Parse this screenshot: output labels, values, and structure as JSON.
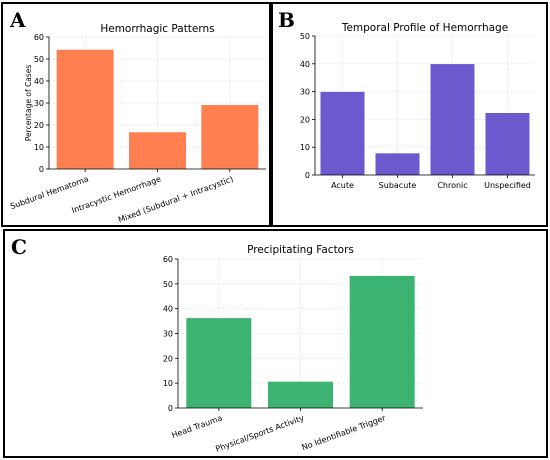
{
  "panels": [
    {
      "letter": "A"
    },
    {
      "letter": "B"
    },
    {
      "letter": "C"
    }
  ],
  "chart_data": [
    {
      "type": "bar",
      "title": "Hemorrhagic Patterns",
      "xlabel": "",
      "ylabel": "Percentage of Cases",
      "categories": [
        "Subdural Hematoma",
        "Intracystic Hemorrhage",
        "Mixed (Subdural + Intracystic)"
      ],
      "values": [
        54.2,
        16.7,
        29.1
      ],
      "ylim": [
        0,
        60
      ],
      "yticks": [
        0,
        10,
        20,
        30,
        40,
        50,
        60
      ],
      "color": "#FF7F50",
      "grid": true,
      "xtick_rotation": -20
    },
    {
      "type": "bar",
      "title": "Temporal Profile of Hemorrhage",
      "xlabel": "",
      "ylabel": "",
      "categories": [
        "Acute",
        "Subacute",
        "Chronic",
        "Unspecified"
      ],
      "values": [
        29.9,
        7.8,
        39.9,
        22.3
      ],
      "ylim": [
        0,
        50
      ],
      "yticks": [
        0,
        10,
        20,
        30,
        40,
        50
      ],
      "color": "#6A5ACD",
      "grid": true,
      "xtick_rotation": 0
    },
    {
      "type": "bar",
      "title": "Precipitating Factors",
      "xlabel": "",
      "ylabel": "",
      "categories": [
        "Head Trauma",
        "Physical/Sports Activity",
        "No Identifiable Trigger"
      ],
      "values": [
        36.2,
        10.6,
        53.2
      ],
      "ylim": [
        0,
        60
      ],
      "yticks": [
        0,
        10,
        20,
        30,
        40,
        50,
        60
      ],
      "color": "#3CB371",
      "grid": true,
      "xtick_rotation": -20
    }
  ]
}
